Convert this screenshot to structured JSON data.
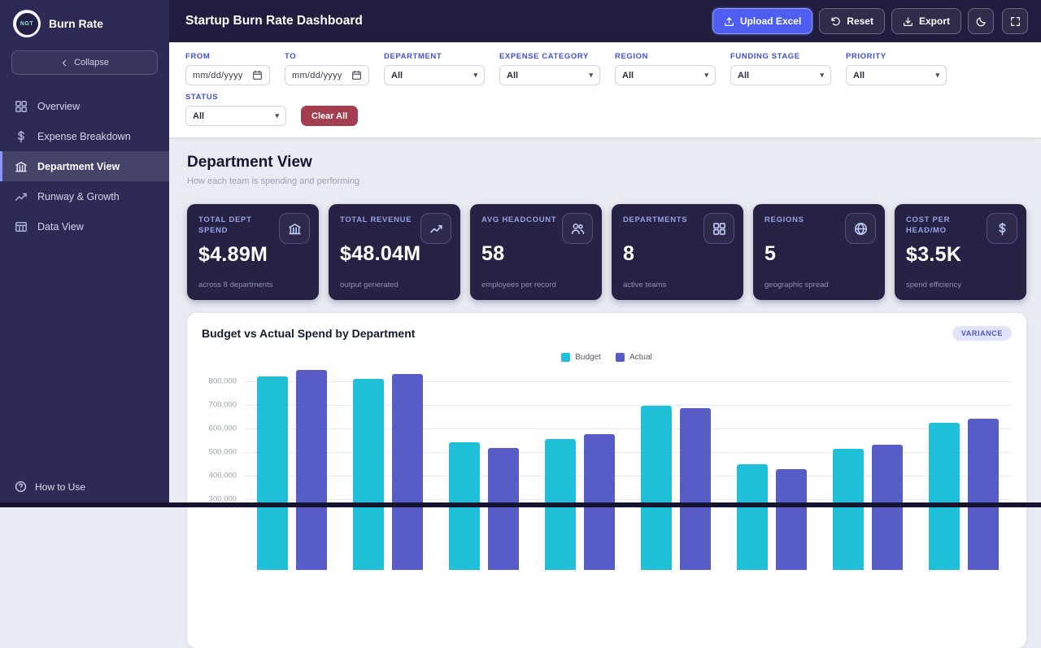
{
  "app": {
    "brand": "Burn Rate",
    "logo_text": "NGT",
    "title": "Startup Burn Rate Dashboard"
  },
  "header": {
    "upload_label": "Upload Excel",
    "reset_label": "Reset",
    "export_label": "Export"
  },
  "sidebar": {
    "collapse_label": "Collapse",
    "items": [
      {
        "label": "Overview",
        "icon": "grid-icon",
        "active": false
      },
      {
        "label": "Expense Breakdown",
        "icon": "dollar-icon",
        "active": false
      },
      {
        "label": "Department View",
        "icon": "bank-icon",
        "active": true
      },
      {
        "label": "Runway & Growth",
        "icon": "trend-icon",
        "active": false
      },
      {
        "label": "Data View",
        "icon": "table-icon",
        "active": false
      }
    ],
    "footer_item": "How to Use"
  },
  "filters": {
    "row1": [
      {
        "label": "FROM",
        "type": "date",
        "placeholder": "mm/dd/yyyy"
      },
      {
        "label": "TO",
        "type": "date",
        "placeholder": "mm/dd/yyyy"
      },
      {
        "label": "DEPARTMENT",
        "type": "select",
        "value": "All"
      },
      {
        "label": "EXPENSE CATEGORY",
        "type": "select",
        "value": "All"
      },
      {
        "label": "REGION",
        "type": "select",
        "value": "All"
      },
      {
        "label": "FUNDING STAGE",
        "type": "select",
        "value": "All"
      },
      {
        "label": "PRIORITY",
        "type": "select",
        "value": "All"
      }
    ],
    "row2": [
      {
        "label": "STATUS",
        "type": "select",
        "value": "All"
      }
    ],
    "clear_label": "Clear All"
  },
  "section": {
    "title": "Department View",
    "subtitle": "How each team is spending and performing"
  },
  "kpis": [
    {
      "label": "TOTAL DEPT SPEND",
      "value": "$4.89M",
      "sub": "across 8 departments",
      "icon": "bank-icon"
    },
    {
      "label": "TOTAL REVENUE",
      "value": "$48.04M",
      "sub": "output generated",
      "icon": "trend-icon"
    },
    {
      "label": "AVG HEADCOUNT",
      "value": "58",
      "sub": "employees per record",
      "icon": "people-icon"
    },
    {
      "label": "DEPARTMENTS",
      "value": "8",
      "sub": "active teams",
      "icon": "grid-icon"
    },
    {
      "label": "REGIONS",
      "value": "5",
      "sub": "geographic spread",
      "icon": "globe-icon"
    },
    {
      "label": "COST PER HEAD/MO",
      "value": "$3.5K",
      "sub": "spend efficiency",
      "icon": "dollar-icon"
    }
  ],
  "chart_data": {
    "type": "bar",
    "title": "Budget vs Actual Spend by Department",
    "badge": "VARIANCE",
    "legend_position": "top-center",
    "grid": true,
    "x_labels_visible": false,
    "categories": [
      "",
      "",
      "",
      "",
      "",
      "",
      "",
      ""
    ],
    "series": [
      {
        "name": "Budget",
        "color": "#1fc0d8",
        "values": [
          820000,
          810000,
          541000,
          555000,
          695000,
          447000,
          513000,
          622000
        ]
      },
      {
        "name": "Actual",
        "color": "#585cc6",
        "values": [
          845000,
          830000,
          517000,
          576000,
          684000,
          426000,
          531000,
          639000
        ]
      }
    ],
    "ylim": [
      0,
      850000
    ],
    "yticks": [
      {
        "value": 800000,
        "label": "800,000"
      },
      {
        "value": 700000,
        "label": "700,000"
      },
      {
        "value": 600000,
        "label": "600,000"
      },
      {
        "value": 500000,
        "label": "500,000"
      },
      {
        "value": 400000,
        "label": "400,000"
      },
      {
        "value": 300000,
        "label": "300,000"
      }
    ]
  },
  "colors": {
    "accent": "#4d5ef0",
    "budget": "#1fc0d8",
    "actual": "#585cc6",
    "sidebar_bg": "#2d2a55",
    "header_bg": "#211d3f",
    "kpi_card_bg": "#262244",
    "filter_label": "#3d52d5",
    "clear_button": "#a23e50"
  }
}
